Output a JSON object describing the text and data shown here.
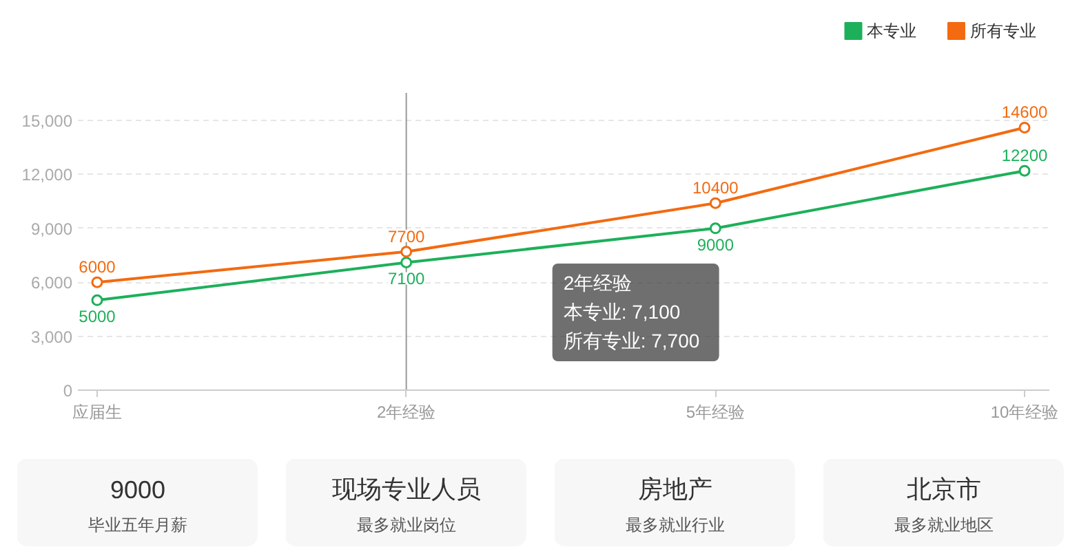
{
  "chart_data": [
    {
      "type": "line",
      "categories": [
        "应届生",
        "2年经验",
        "5年经验",
        "10年经验"
      ],
      "annotations": [
        "2年经验",
        "本专业: 7,100",
        "所有专业: 7,700"
      ],
      "series": [
        {
          "name": "本专业",
          "color": "#1db05a",
          "values": [
            5000,
            7100,
            9000,
            12200
          ]
        },
        {
          "name": "所有专业",
          "color": "#f36a10",
          "values": [
            6000,
            7700,
            10400,
            14600
          ]
        }
      ],
      "ylim": [
        0,
        15000
      ],
      "yticks": [
        0,
        {
          "value": 3000,
          "label": "3,000"
        },
        {
          "value": 6000,
          "label": "6,000"
        },
        {
          "value": 9000,
          "label": "9,000"
        },
        {
          "value": 12000,
          "label": "12,000"
        },
        {
          "value": 15000,
          "label": "15,000"
        }
      ],
      "grid": "y",
      "legend": "top right",
      "marker": "circle",
      "data_labels": true,
      "ref_lines": [
        {
          "axis": "x",
          "value": "2年经验",
          "color": "#999999"
        }
      ]
    },
    {
      "type": "other",
      "title": "9000",
      "subtitle": "毕业五年月薪"
    },
    {
      "type": "other",
      "title": "现场专业人员",
      "subtitle": "最多就业岗位"
    },
    {
      "type": "other",
      "title": "房地产",
      "subtitle": "最多就业行业"
    },
    {
      "type": "other",
      "title": "北京市",
      "subtitle": "最多就业地区"
    }
  ]
}
